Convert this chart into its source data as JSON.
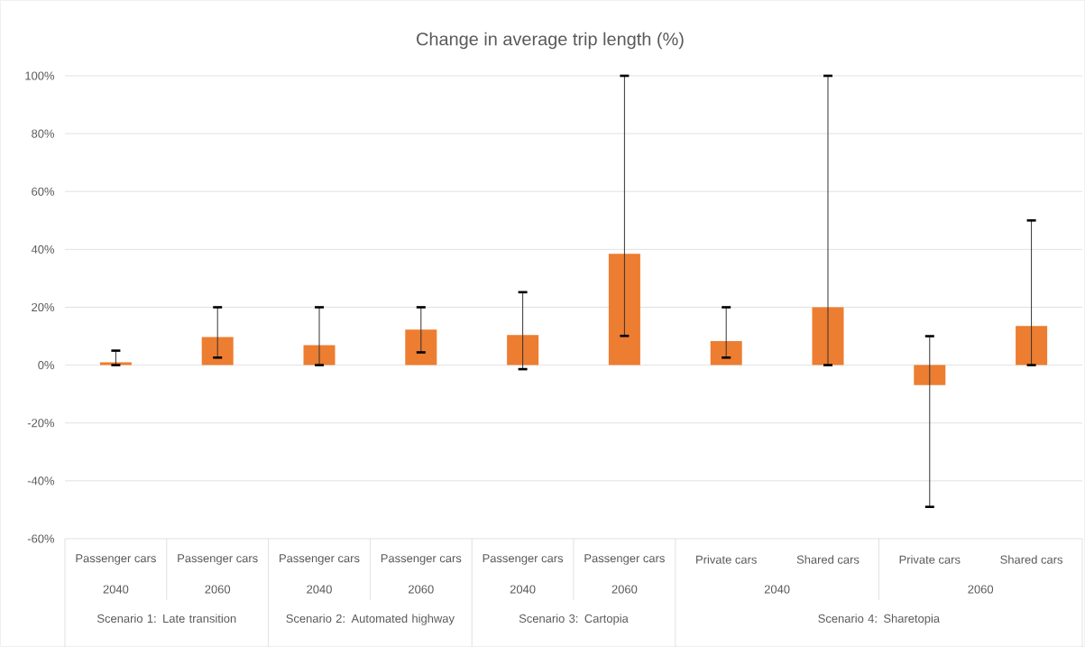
{
  "chart_data": {
    "type": "bar",
    "title": "Change in average trip length (%)",
    "categories": [
      "Passenger cars",
      "Passenger cars",
      "Passenger cars",
      "Passenger cars",
      "Passenger cars",
      "Passenger cars",
      "Private cars",
      "Shared cars",
      "Private cars",
      "Shared cars"
    ],
    "values": [
      1,
      9.7,
      6.9,
      12.3,
      10.4,
      38.5,
      8.3,
      20,
      -6.9,
      13.5
    ],
    "errors": [
      [
        0,
        5
      ],
      [
        2.6,
        20
      ],
      [
        0,
        20
      ],
      [
        4.4,
        20
      ],
      [
        -1.4,
        25.2
      ],
      [
        10.1,
        100
      ],
      [
        2.6,
        20
      ],
      [
        0,
        100
      ],
      [
        -49,
        10
      ],
      [
        0,
        50
      ]
    ],
    "color": "#ed7d31",
    "ylim": [
      -60,
      100
    ],
    "yticks": [
      {
        "value": -60,
        "label": "-60%"
      },
      {
        "value": -40,
        "label": "-40%"
      },
      {
        "value": -20,
        "label": "-20%"
      },
      {
        "value": 0,
        "label": "0%"
      },
      {
        "value": 20,
        "label": "20%"
      },
      {
        "value": 40,
        "label": "40%"
      },
      {
        "value": 60,
        "label": "60%"
      },
      {
        "value": 80,
        "label": "80%"
      },
      {
        "value": 100,
        "label": "100%"
      }
    ],
    "grid": "y",
    "annotations": [
      "2040",
      "2060",
      "2040",
      "2060",
      "2040",
      "2060",
      "2040",
      "2060",
      "Scenario 1: Late transition",
      "Scenario 2: Automated highway",
      "Scenario 3: Cartopia",
      "Scenario 4: Sharetopia"
    ]
  }
}
